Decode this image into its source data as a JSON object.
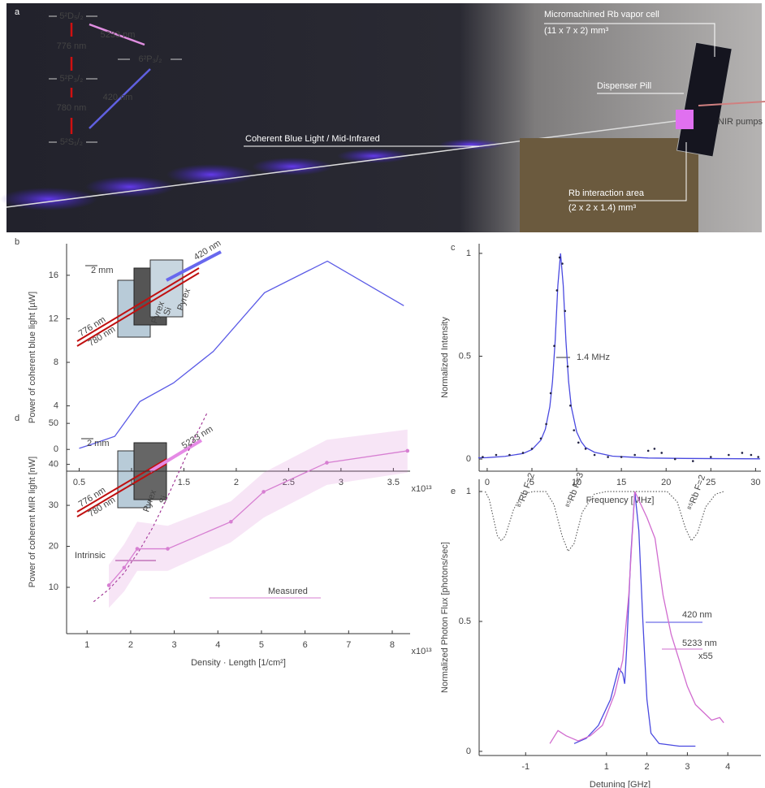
{
  "figure": {
    "panel_labels": [
      "a",
      "b",
      "c",
      "d",
      "e"
    ],
    "panel_a": {
      "levels": [
        "5²D₅/₂",
        "6²P₃/₂",
        "5²P₃/₂",
        "5²S₁/₂"
      ],
      "transitions": [
        "776 nm",
        "5233 nm",
        "780 nm",
        "420 nm"
      ],
      "cell_title": "Micromachined  Rb vapor cell",
      "cell_size": "(11 x 7 x 2) mm³",
      "pill": "Dispenser Pill",
      "pumps": "NIR pumps",
      "beam": "Coherent Blue Light / Mid-Infrared",
      "area": "Rb interaction area",
      "area_size": "(2 x 2 x 1.4) mm³"
    }
  },
  "chart_data": [
    {
      "type": "line",
      "y_label": "Power of coherent blue light  [µW]",
      "x_multiplier": "x10¹³",
      "xlim": [
        0.38,
        3.66
      ],
      "xticks": [
        0.5,
        1,
        1.5,
        2,
        2.5,
        3,
        3.5
      ],
      "ylim": [
        -2,
        18.9
      ],
      "yticks": [
        0,
        4,
        8,
        12,
        16
      ],
      "inset_labels": [
        "776 nm",
        "780 nm",
        "420 nm",
        "Pyrex",
        "Si",
        "Pyrex",
        "2 mm"
      ],
      "series": [
        {
          "color": "#5a5ae6",
          "style": "solid",
          "x": [
            0.5,
            0.63,
            0.84,
            1.08,
            1.4,
            1.78,
            2.27,
            2.87,
            3.6
          ],
          "values": [
            0.1,
            0.5,
            1.2,
            4.4,
            6.1,
            9,
            14.4,
            17.3,
            13.2
          ]
        }
      ]
    },
    {
      "type": "line",
      "x_label": "Frequency [MHz]",
      "y_label": "Normalized Intensity",
      "xlim": [
        -0.9,
        30.6
      ],
      "xticks": [
        0,
        5,
        10,
        15,
        20,
        25,
        30
      ],
      "ylim": [
        -0.059,
        1.047
      ],
      "yticks": [
        0,
        0.5,
        1
      ],
      "annotations": [
        "1.4 MHz"
      ],
      "series": [
        {
          "color": "#4a4ae0",
          "style": "solid",
          "x": [
            -1,
            0,
            2,
            4,
            5,
            6,
            6.5,
            7,
            7.3,
            7.6,
            7.9,
            8.2,
            8.5,
            8.8,
            9.1,
            9.4,
            10,
            10.5,
            11,
            12,
            14,
            18,
            22,
            26,
            30.5
          ],
          "values": [
            0.006,
            0.007,
            0.013,
            0.027,
            0.046,
            0.092,
            0.145,
            0.254,
            0.377,
            0.576,
            0.845,
            1,
            0.845,
            0.576,
            0.377,
            0.254,
            0.132,
            0.085,
            0.056,
            0.033,
            0.014,
            0.005,
            0.003,
            0.002,
            0.001
          ]
        },
        {
          "color": "#222244",
          "style": "dots",
          "x": [
            -0.5,
            1,
            2.5,
            4,
            5,
            6,
            6.6,
            7.1,
            7.5,
            7.8,
            8.1,
            8.4,
            8.7,
            9,
            9.3,
            9.7,
            10.2,
            11,
            12,
            13.5,
            15,
            16.5,
            18,
            18.7,
            19.5,
            21,
            23,
            25,
            27,
            28.5,
            29.5,
            30.3
          ],
          "values": [
            0.01,
            0.02,
            0.02,
            0.03,
            0.05,
            0.1,
            0.17,
            0.32,
            0.55,
            0.82,
            0.98,
            0.95,
            0.72,
            0.45,
            0.26,
            0.14,
            0.08,
            0.05,
            0.02,
            0.01,
            0.01,
            0.02,
            0.04,
            0.05,
            0.03,
            0.0,
            -0.01,
            0.01,
            0.02,
            0.03,
            0.02,
            0.01
          ]
        }
      ]
    },
    {
      "type": "line",
      "x_label": "Density · Length [1/cm²]",
      "y_label": "Power of coherent MIR light  [nW]",
      "x_multiplier": "x10¹³",
      "xlim": [
        0.53,
        8.41
      ],
      "xticks": [
        1,
        2,
        3,
        4,
        5,
        6,
        7,
        8
      ],
      "ylim": [
        -1.3,
        53.2
      ],
      "yticks": [
        10,
        20,
        30,
        40,
        50
      ],
      "inset_labels": [
        "776 nm",
        "780 nm",
        "5233 nm",
        "Pyrex",
        "Si",
        "2 mm"
      ],
      "series": [
        {
          "name": "Intrinsic",
          "color": "#9b2a8f",
          "style": "dashed",
          "x": [
            1.15,
            1.5,
            1.85,
            2.2,
            2.5,
            2.8,
            3.1,
            3.4,
            3.75
          ],
          "values": [
            6.5,
            9.5,
            13.5,
            19,
            24.5,
            31,
            38,
            45,
            52.5
          ]
        },
        {
          "name": "Measured",
          "color": "#d77fd2",
          "style": "solid",
          "markers": true,
          "x": [
            1.5,
            1.85,
            2.15,
            2.85,
            4.3,
            5.05,
            6.5,
            8.35
          ],
          "values": [
            10.5,
            14.8,
            19.4,
            19.4,
            26,
            33.3,
            40.4,
            43.3
          ],
          "lower": [
            5,
            9,
            14,
            14,
            21,
            27,
            35,
            38
          ],
          "upper": [
            15.5,
            20.5,
            26,
            25,
            31,
            38,
            46,
            48.5
          ]
        }
      ]
    },
    {
      "type": "line",
      "x_label": "Detuning [GHz]",
      "y_label": "Normalized Photon Flux [photons/sec]",
      "xlim": [
        -2.15,
        4.82
      ],
      "xticks": [
        -1,
        1,
        2,
        3,
        4
      ],
      "ylim": [
        -0.016,
        1.047
      ],
      "yticks": [
        0,
        0.5,
        1
      ],
      "annotations": [
        "x55",
        "⁸⁷Rb F=2",
        "⁸⁵Rb F=3",
        "⁸⁵Rb F=2"
      ],
      "series": [
        {
          "color": "#555555",
          "style": "dotted",
          "x": [
            -2,
            -1.9,
            -1.8,
            -1.7,
            -1.6,
            -1.5,
            -1.3,
            -1.1,
            -0.8,
            -0.5,
            -0.3,
            -0.1,
            0.05,
            0.2,
            0.4,
            0.7,
            1,
            2.5,
            2.75,
            2.95,
            3.1,
            3.25,
            3.45,
            3.7,
            3.9
          ],
          "values": [
            1,
            0.97,
            0.9,
            0.83,
            0.81,
            0.83,
            0.93,
            0.99,
            1,
            1,
            0.95,
            0.83,
            0.77,
            0.8,
            0.92,
            0.99,
            1,
            1,
            0.96,
            0.86,
            0.81,
            0.84,
            0.94,
            0.99,
            1
          ]
        },
        {
          "name": "420 nm",
          "color": "#4a4ae0",
          "style": "solid",
          "x": [
            0.2,
            0.5,
            0.8,
            1.1,
            1.3,
            1.4,
            1.45,
            1.5,
            1.6,
            1.7,
            1.8,
            1.9,
            2.0,
            2.1,
            2.3,
            2.8,
            3.2
          ],
          "values": [
            0.03,
            0.05,
            0.1,
            0.2,
            0.32,
            0.3,
            0.26,
            0.4,
            0.75,
            1.0,
            0.85,
            0.5,
            0.2,
            0.07,
            0.03,
            0.02,
            0.02
          ]
        },
        {
          "name": "5233 nm",
          "color": "#d16ccf",
          "style": "solid",
          "x": [
            -0.4,
            -0.2,
            0,
            0.3,
            0.6,
            0.9,
            1.2,
            1.4,
            1.55,
            1.7,
            1.85,
            2.0,
            2.2,
            2.4,
            2.6,
            2.8,
            3.0,
            3.2,
            3.4,
            3.6,
            3.8,
            3.9
          ],
          "values": [
            0.03,
            0.08,
            0.06,
            0.04,
            0.06,
            0.1,
            0.22,
            0.35,
            0.6,
            1.0,
            0.95,
            0.9,
            0.82,
            0.6,
            0.45,
            0.35,
            0.25,
            0.18,
            0.15,
            0.12,
            0.13,
            0.11
          ]
        }
      ]
    }
  ]
}
